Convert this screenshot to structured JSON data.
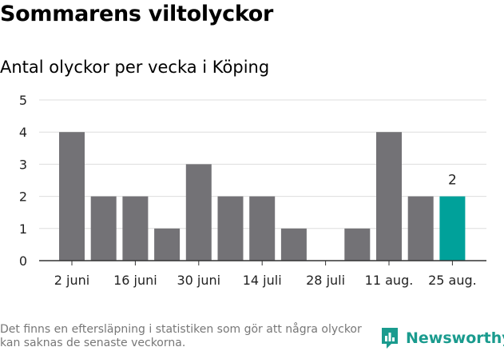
{
  "title": "Sommarens viltolyckor",
  "subtitle": "Antal olyckor per vecka i Köping",
  "footnote": "Det finns en eftersläpning i statistiken som gör att några olyckor kan saknas de senaste veckorna.",
  "brand": "Newsworthy",
  "colors": {
    "bar": "#737276",
    "highlight": "#00a19a",
    "grid": "#dddddd",
    "brand": "#1a9b8e"
  },
  "chart_data": {
    "type": "bar",
    "values": [
      4,
      2,
      2,
      1,
      3,
      2,
      2,
      1,
      0,
      1,
      4,
      2,
      2
    ],
    "x_tick_labels": [
      "2 juni",
      "16 juni",
      "30 juni",
      "14 juli",
      "28 juli",
      "11 aug.",
      "25 aug."
    ],
    "y_ticks": [
      0,
      1,
      2,
      3,
      4,
      5
    ],
    "ylim": [
      0,
      5
    ],
    "highlight_index": 12,
    "data_labels": [
      {
        "index": 12,
        "text": "2"
      }
    ],
    "grid": true
  }
}
